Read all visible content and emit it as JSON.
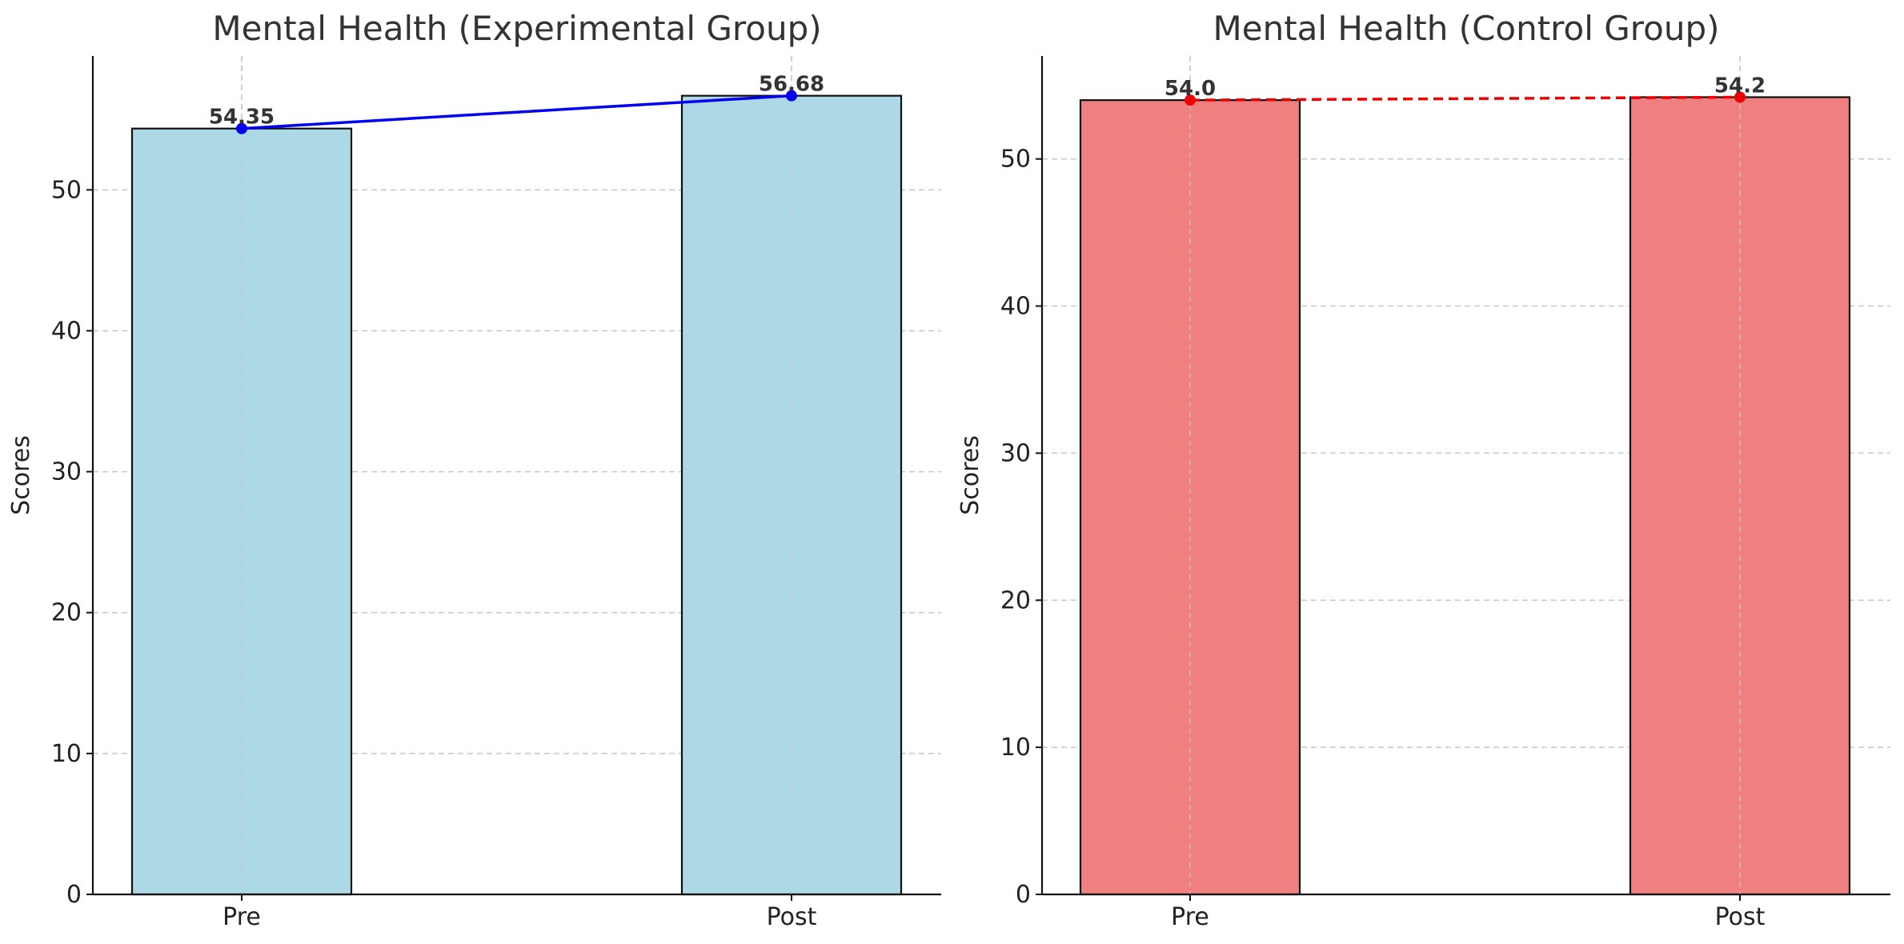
{
  "chart_data": [
    {
      "type": "bar",
      "title": "Mental Health (Experimental Group)",
      "categories": [
        "Pre",
        "Post"
      ],
      "values": [
        54.35,
        56.68
      ],
      "value_labels": [
        "54.35",
        "56.68"
      ],
      "xlabel": "",
      "ylabel": "Scores",
      "ylim": [
        0,
        59.5
      ],
      "yticks": [
        0,
        10,
        20,
        30,
        40,
        50
      ],
      "bar_color": "#add8e6",
      "line_color": "#0000ee",
      "line_style": "solid",
      "grid": true
    },
    {
      "type": "bar",
      "title": "Mental Health (Control Group)",
      "categories": [
        "Pre",
        "Post"
      ],
      "values": [
        54.0,
        54.2
      ],
      "value_labels": [
        "54.0",
        "54.2"
      ],
      "xlabel": "",
      "ylabel": "Scores",
      "ylim": [
        0,
        57
      ],
      "yticks": [
        0,
        10,
        20,
        30,
        40,
        50
      ],
      "bar_color": "#f08080",
      "line_color": "#ee0000",
      "line_style": "dashed",
      "grid": true
    }
  ]
}
